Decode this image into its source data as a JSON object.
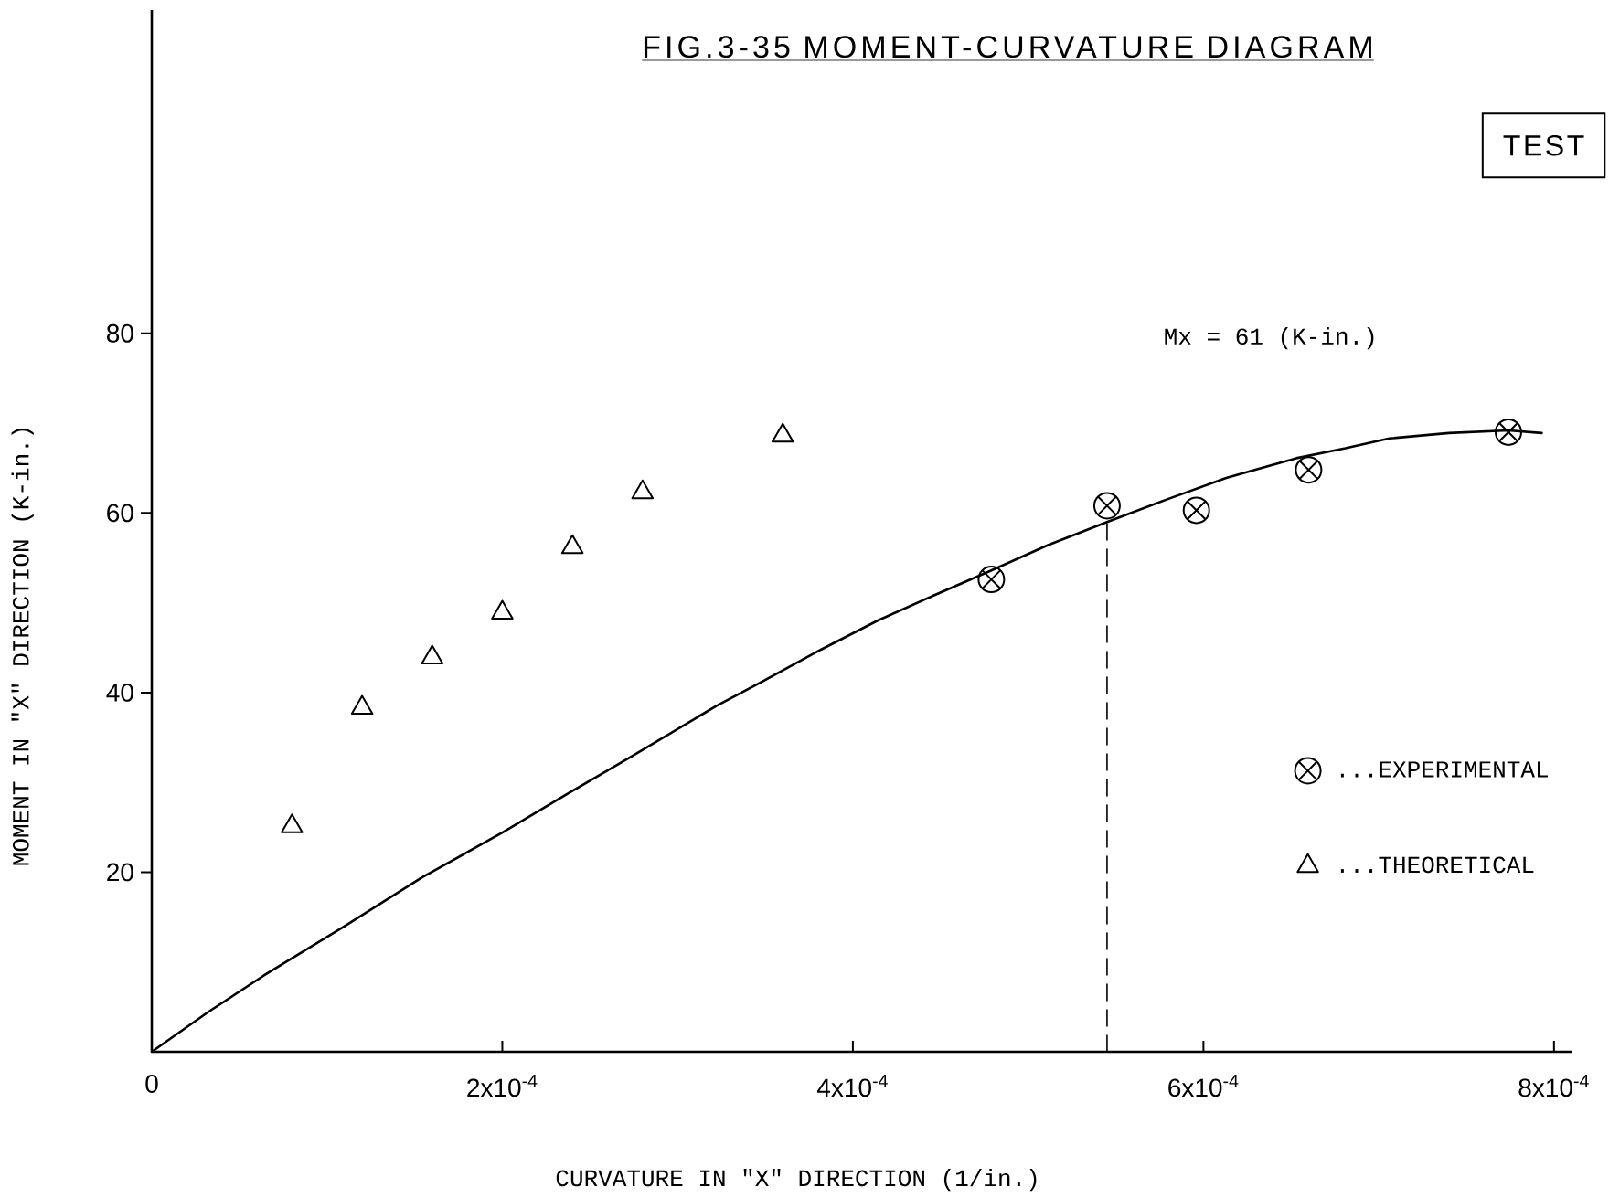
{
  "chart_data": {
    "type": "scatter",
    "title": "FIG.3-35 MOMENT-CURVATURE DIAGRAM",
    "xlabel": "CURVATURE IN \"X\" DIRECTION (1/in.)",
    "ylabel": "MOMENT IN \"X\" DIRECTION (K-in.)",
    "annotations": [
      "Mx = 61 (K-in.)",
      "TEST"
    ],
    "xlim": [
      0,
      0.00081
    ],
    "ylim": [
      0,
      116
    ],
    "xticks": [
      {
        "value": 0,
        "label": "0"
      },
      {
        "value": 0.0002,
        "label": "2x10$^{-4}$"
      },
      {
        "value": 0.0004,
        "label": "4x10$^{-4}$"
      },
      {
        "value": 0.0006,
        "label": "6x10$^{-4}$"
      },
      {
        "value": 0.0008,
        "label": "8x10$^{-4}$"
      }
    ],
    "yticks": [
      20,
      40,
      60,
      80
    ],
    "legend": "bottom right",
    "series": [
      {
        "name": "...EXPERIMENTAL",
        "marker": "circle",
        "color": "#000000",
        "x": [
          0.000479,
          0.000545,
          0.000596,
          0.00066,
          0.000774
        ],
        "values": [
          52.6,
          60.8,
          60.3,
          64.8,
          69.0
        ]
      },
      {
        "name": "...THEORETICAL",
        "marker": "triangle",
        "color": "#000000",
        "x": [
          8e-05,
          0.00012,
          0.00016,
          0.0002,
          0.00024,
          0.00028,
          0.00036
        ],
        "values": [
          25.1,
          38.3,
          43.9,
          48.9,
          56.2,
          62.3,
          68.6
        ]
      },
      {
        "type": "line",
        "color": "#000000",
        "x": [
          0,
          3.2e-05,
          6.4e-05,
          0.000111,
          0.000154,
          0.0002,
          0.000237,
          0.000273,
          0.000322,
          0.000349,
          0.000382,
          0.000414,
          0.000446,
          0.000479,
          0.000511,
          0.000545,
          0.000579,
          0.000613,
          0.000653,
          0.000681,
          0.000706,
          0.00074,
          0.000774,
          0.000793
        ],
        "values": [
          0,
          4.4,
          8.5,
          14.1,
          19.4,
          24.4,
          28.7,
          32.8,
          38.5,
          41.3,
          44.8,
          48.0,
          50.8,
          53.6,
          56.4,
          59.0,
          61.5,
          63.9,
          66.1,
          67.2,
          68.3,
          68.9,
          69.2,
          68.9
        ]
      },
      {
        "type": "line",
        "color": "#000000",
        "line_style": "dashed",
        "x": [
          0.000545,
          0.000545
        ],
        "values": [
          0,
          59.0
        ]
      }
    ]
  }
}
